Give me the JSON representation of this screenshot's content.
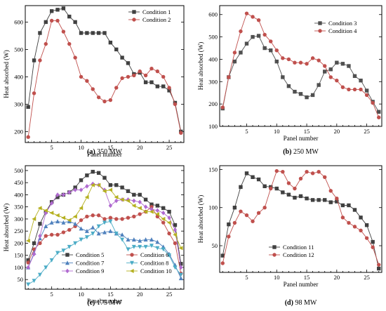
{
  "chart_data": [
    {
      "type": "line",
      "caption_label": "(a)",
      "caption_text": "350 MW",
      "xlabel": "Panel number",
      "ylabel": "Heat absorbed (W)",
      "xlim": [
        0.5,
        27.5
      ],
      "ylim": [
        160,
        660
      ],
      "xticks": [
        5,
        10,
        15,
        20,
        25
      ],
      "yticks": [
        200,
        300,
        400,
        500,
        600
      ],
      "legend_position": "top-right",
      "x": [
        1,
        2,
        3,
        4,
        5,
        6,
        7,
        8,
        9,
        10,
        11,
        12,
        13,
        14,
        15,
        16,
        17,
        18,
        19,
        20,
        21,
        22,
        23,
        24,
        25,
        26,
        27
      ],
      "series": [
        {
          "name": "Condition 1",
          "color": "#404040",
          "marker": "square",
          "values": [
            290,
            460,
            560,
            600,
            640,
            645,
            650,
            620,
            600,
            560,
            560,
            560,
            560,
            560,
            525,
            500,
            470,
            450,
            410,
            415,
            380,
            380,
            365,
            365,
            350,
            305,
            200
          ]
        },
        {
          "name": "Condition 2",
          "color": "#c0504d",
          "marker": "circle",
          "values": [
            180,
            340,
            460,
            520,
            605,
            605,
            565,
            520,
            470,
            400,
            385,
            355,
            325,
            310,
            315,
            360,
            395,
            400,
            405,
            420,
            405,
            430,
            420,
            400,
            360,
            300,
            195
          ]
        }
      ]
    },
    {
      "type": "line",
      "caption_label": "(b)",
      "caption_text": "250 MW",
      "xlabel": "Panel number",
      "ylabel": "Heat absorbed (W)",
      "xlim": [
        0.5,
        27.5
      ],
      "ylim": [
        100,
        640
      ],
      "xticks": [
        5,
        10,
        15,
        20,
        25
      ],
      "yticks": [
        100,
        200,
        300,
        400,
        500,
        600
      ],
      "legend_position": "top-right",
      "x": [
        1,
        2,
        3,
        4,
        5,
        6,
        7,
        8,
        9,
        10,
        11,
        12,
        13,
        14,
        15,
        16,
        17,
        18,
        19,
        20,
        21,
        22,
        23,
        24,
        25,
        26,
        27
      ],
      "series": [
        {
          "name": "Condition 3",
          "color": "#505050",
          "marker": "square",
          "values": [
            180,
            320,
            390,
            430,
            470,
            500,
            505,
            450,
            440,
            390,
            320,
            280,
            255,
            245,
            230,
            240,
            285,
            345,
            355,
            385,
            380,
            370,
            325,
            305,
            260,
            210,
            165
          ]
        },
        {
          "name": "Condition 4",
          "color": "#c0504d",
          "marker": "circle",
          "values": [
            185,
            320,
            430,
            525,
            605,
            590,
            575,
            510,
            480,
            440,
            405,
            400,
            385,
            385,
            380,
            405,
            395,
            370,
            320,
            305,
            275,
            265,
            265,
            265,
            240,
            205,
            140
          ]
        }
      ]
    },
    {
      "type": "line",
      "caption_label": "(c)",
      "caption_text": "175 MW",
      "xlabel": "Panel number",
      "ylabel": "Heat absorbed (W)",
      "xlim": [
        0.5,
        27.5
      ],
      "ylim": [
        10,
        520
      ],
      "xticks": [
        5,
        10,
        15,
        20,
        25
      ],
      "yticks": [
        50,
        100,
        150,
        200,
        250,
        300,
        350,
        400,
        450,
        500
      ],
      "legend_position": "bottom",
      "x": [
        1,
        2,
        3,
        4,
        5,
        6,
        7,
        8,
        9,
        10,
        11,
        12,
        13,
        14,
        15,
        16,
        17,
        18,
        19,
        20,
        21,
        22,
        23,
        24,
        25,
        26,
        27
      ],
      "series": [
        {
          "name": "Condition 5",
          "color": "#404040",
          "marker": "square",
          "values": [
            130,
            200,
            280,
            330,
            370,
            390,
            400,
            410,
            430,
            460,
            480,
            495,
            490,
            470,
            440,
            440,
            430,
            415,
            400,
            400,
            380,
            360,
            355,
            345,
            330,
            275,
            115
          ]
        },
        {
          "name": "Condition 6",
          "color": "#c0504d",
          "marker": "circle",
          "values": [
            120,
            175,
            200,
            230,
            235,
            235,
            245,
            255,
            270,
            295,
            310,
            315,
            315,
            300,
            305,
            300,
            300,
            305,
            310,
            320,
            330,
            350,
            310,
            285,
            240,
            200,
            75
          ]
        },
        {
          "name": "Condition 7",
          "color": "#4f81bd",
          "marker": "triangle-up",
          "values": [
            100,
            160,
            220,
            270,
            285,
            290,
            285,
            290,
            280,
            260,
            250,
            265,
            240,
            245,
            250,
            240,
            235,
            215,
            215,
            210,
            215,
            215,
            205,
            185,
            155,
            110,
            55
          ]
        },
        {
          "name": "Condition 8",
          "color": "#4bacc6",
          "marker": "triangle-down",
          "values": [
            30,
            45,
            70,
            100,
            130,
            160,
            170,
            185,
            200,
            215,
            225,
            240,
            270,
            285,
            290,
            240,
            215,
            175,
            185,
            185,
            185,
            190,
            180,
            175,
            150,
            100,
            70
          ]
        },
        {
          "name": "Condition 9",
          "color": "#b06ad0",
          "marker": "diamond",
          "values": [
            100,
            155,
            230,
            325,
            365,
            400,
            400,
            410,
            420,
            420,
            435,
            445,
            440,
            420,
            355,
            375,
            380,
            380,
            375,
            370,
            350,
            340,
            335,
            325,
            305,
            255,
            100
          ]
        },
        {
          "name": "Condition 10",
          "color": "#b5b020",
          "marker": "triangle-left",
          "values": [
            210,
            300,
            345,
            335,
            325,
            315,
            305,
            295,
            310,
            345,
            390,
            440,
            440,
            415,
            420,
            390,
            380,
            375,
            355,
            345,
            330,
            330,
            320,
            300,
            285,
            235,
            180
          ]
        }
      ]
    },
    {
      "type": "line",
      "caption_label": "(d)",
      "caption_text": "98 MW",
      "xlabel": "Panel number",
      "ylabel": "Heat absorbed (W)",
      "xlim": [
        0.5,
        27.5
      ],
      "ylim": [
        15,
        155
      ],
      "xticks": [
        5,
        10,
        15,
        20,
        25
      ],
      "yticks": [
        50,
        100,
        150
      ],
      "legend_position": "bottom-center",
      "x": [
        1,
        2,
        3,
        4,
        5,
        6,
        7,
        8,
        9,
        10,
        11,
        12,
        13,
        14,
        15,
        16,
        17,
        18,
        19,
        20,
        21,
        22,
        23,
        24,
        25,
        26,
        27
      ],
      "series": [
        {
          "name": "Condition 11",
          "color": "#404040",
          "marker": "square",
          "values": [
            37,
            78,
            100,
            127,
            145,
            140,
            137,
            128,
            127,
            125,
            120,
            117,
            113,
            115,
            112,
            110,
            110,
            110,
            107,
            108,
            103,
            103,
            97,
            87,
            77,
            55,
            20
          ]
        },
        {
          "name": "Condition 12",
          "color": "#c0504d",
          "marker": "circle",
          "values": [
            27,
            62,
            80,
            95,
            90,
            82,
            93,
            100,
            125,
            148,
            147,
            132,
            125,
            138,
            147,
            145,
            147,
            140,
            122,
            112,
            87,
            80,
            75,
            70,
            60,
            48,
            25
          ]
        }
      ]
    }
  ]
}
